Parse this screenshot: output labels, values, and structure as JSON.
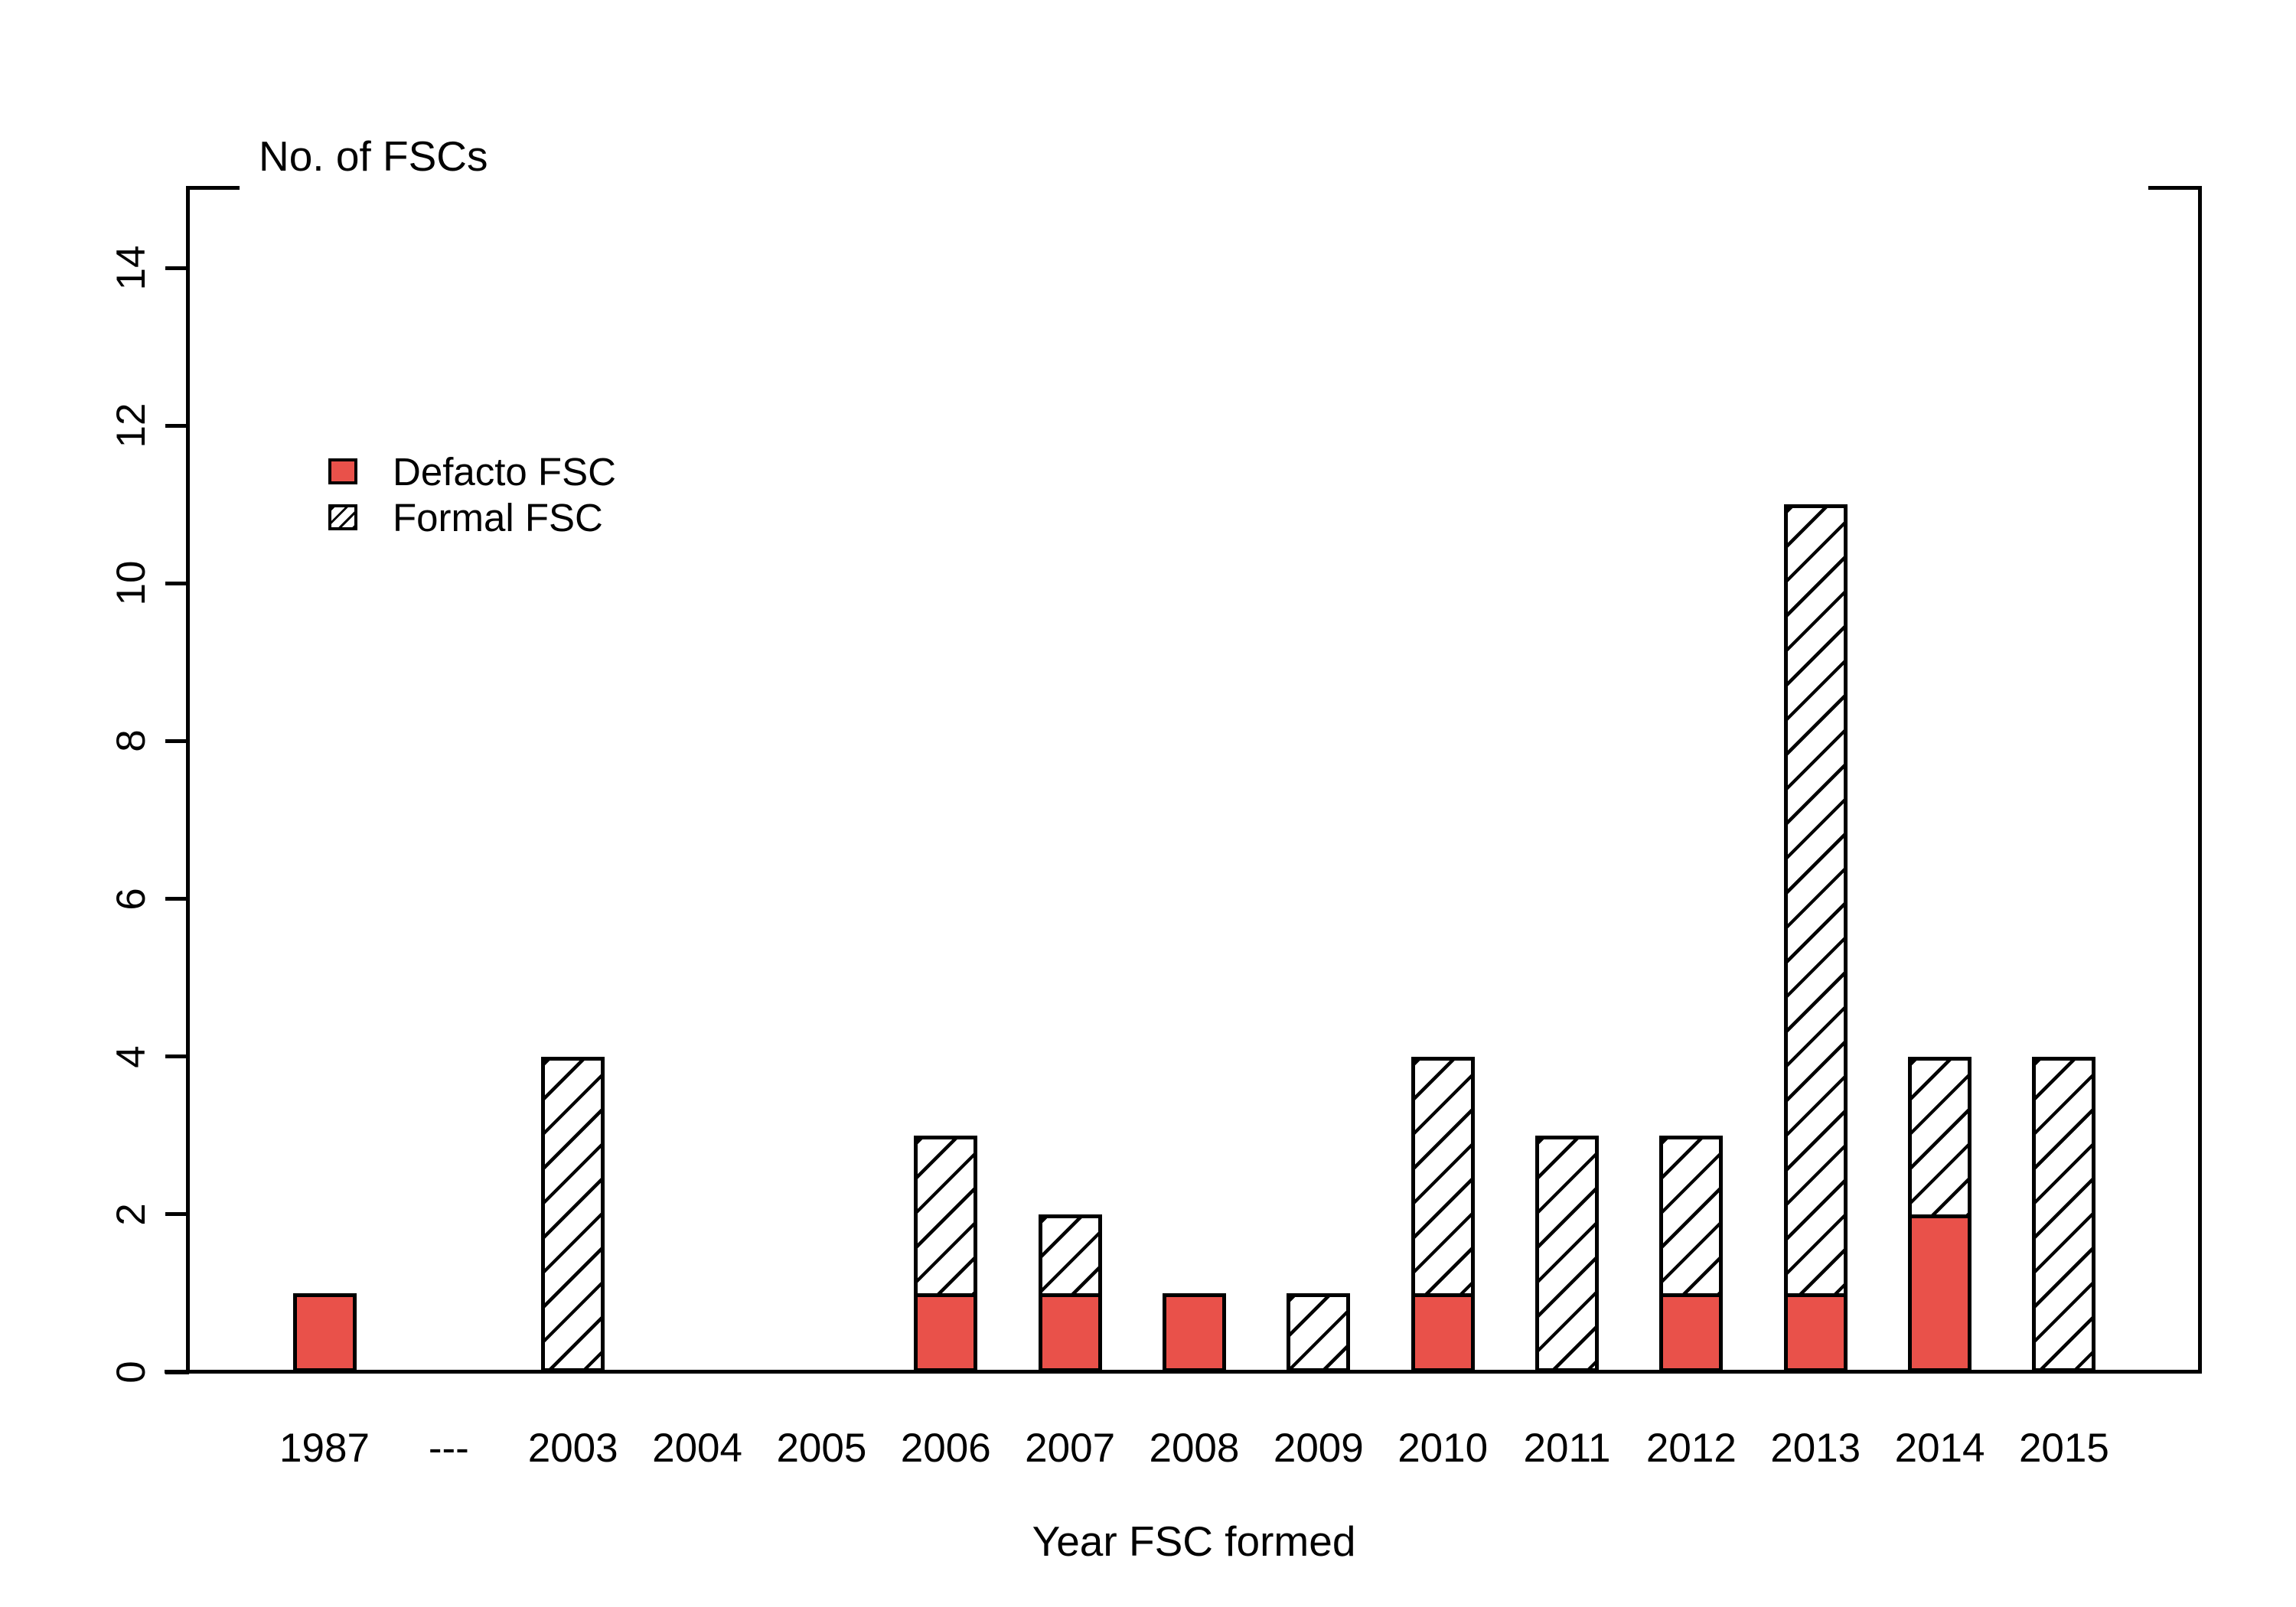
{
  "figure": {
    "background": "#ffffff",
    "frame_style": "open-top-with-corner-brackets"
  },
  "legend": {
    "position": "upper-left",
    "items": [
      {
        "label": "Defacto FSC",
        "swatch": "solid-red",
        "color": "#E9514A"
      },
      {
        "label": "Formal FSC",
        "swatch": "diagonal-hatch",
        "color": "#000000"
      }
    ]
  },
  "chart_data": {
    "type": "bar",
    "stacked": true,
    "title": "No. of FSCs",
    "xlabel": "Year FSC formed",
    "ylabel": "",
    "categories": [
      "1987",
      "---",
      "2003",
      "2004",
      "2005",
      "2006",
      "2007",
      "2008",
      "2009",
      "2010",
      "2011",
      "2012",
      "2013",
      "2014",
      "2015"
    ],
    "series": [
      {
        "name": "Defacto FSC",
        "style": "solid",
        "color": "#E9514A",
        "values": [
          1,
          0,
          0,
          0,
          0,
          1,
          1,
          1,
          0,
          1,
          0,
          1,
          1,
          2,
          0
        ]
      },
      {
        "name": "Formal FSC",
        "style": "hatched",
        "color": "#ffffff",
        "values": [
          0,
          0,
          4,
          0,
          0,
          2,
          1,
          0,
          1,
          3,
          3,
          2,
          10,
          2,
          4
        ]
      }
    ],
    "totals": [
      1,
      0,
      4,
      0,
      0,
      3,
      2,
      1,
      1,
      4,
      3,
      3,
      11,
      4,
      4
    ],
    "yticks": [
      0,
      2,
      4,
      6,
      8,
      10,
      12,
      14
    ],
    "ylim": [
      0,
      15
    ],
    "grid": false,
    "legend_position": "upper-left",
    "bar_outline_color": "#000000",
    "hatch_direction": "forward-slash"
  }
}
